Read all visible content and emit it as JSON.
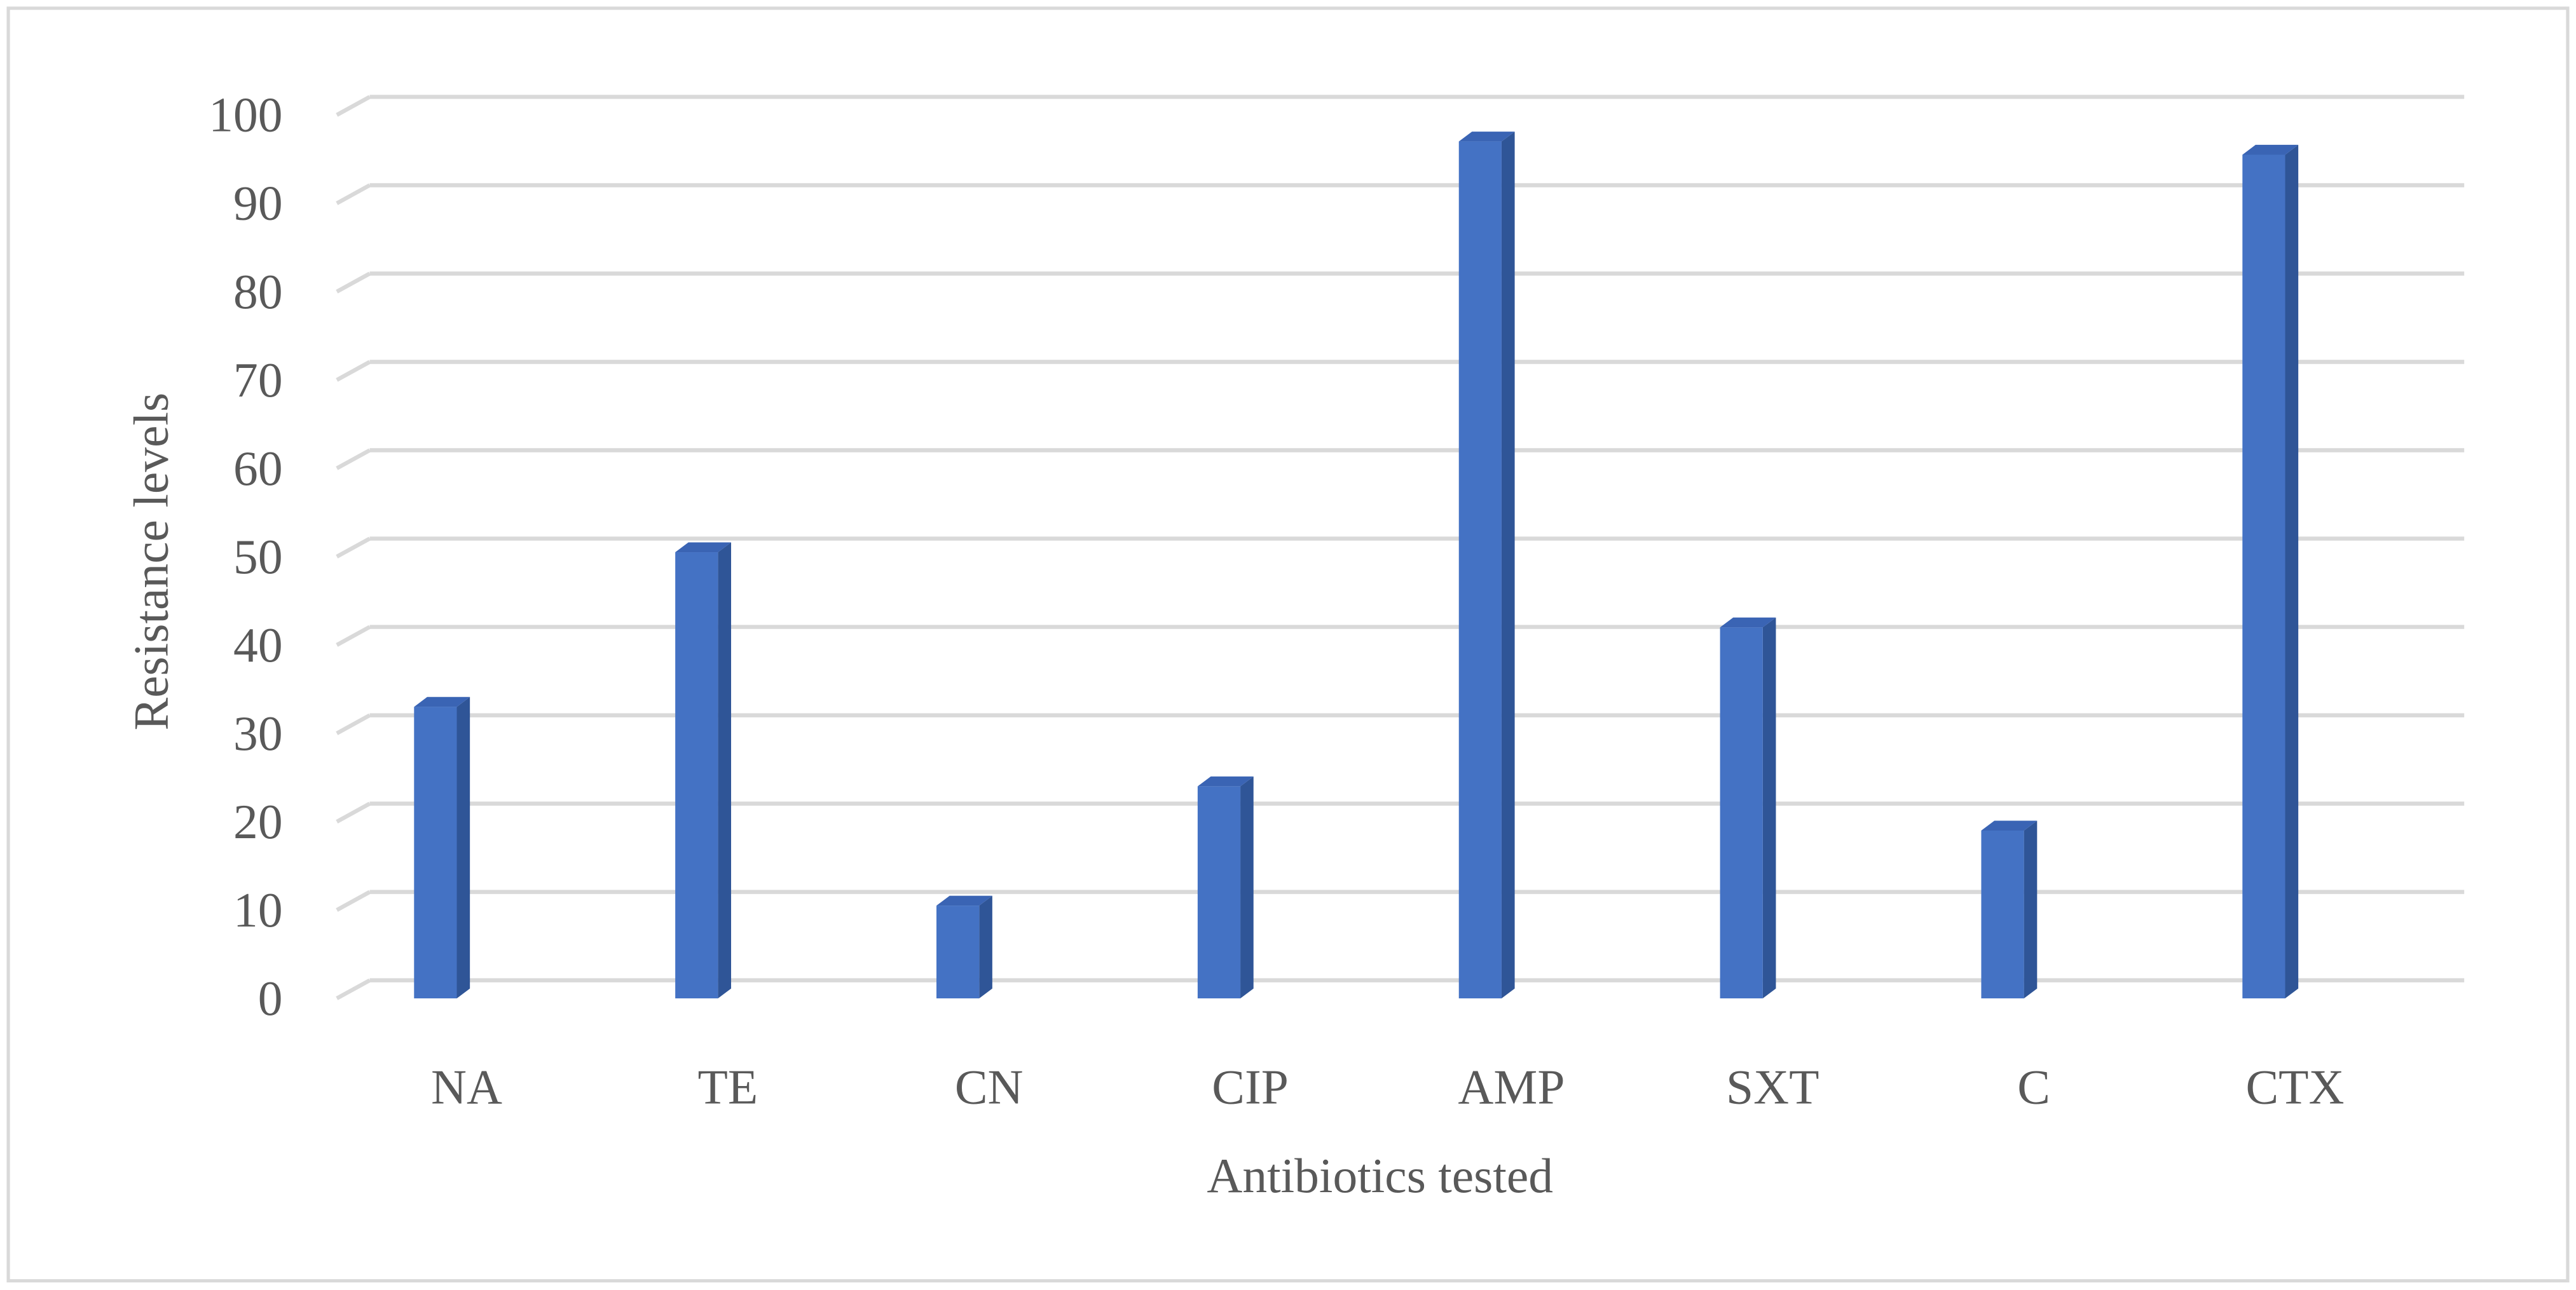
{
  "chart_data": {
    "type": "bar3d",
    "x_label": "Antibiotics tested",
    "y_label": "Resistance levels",
    "categories": [
      "NA",
      "TE",
      "CN",
      "CIP",
      "AMP",
      "SXT",
      "C",
      "CTX"
    ],
    "values": [
      33,
      50.5,
      10.5,
      24,
      97,
      42,
      19,
      95.5
    ],
    "color": "#4472c4",
    "ylim": [
      0,
      100
    ],
    "yticks": [
      0,
      10,
      20,
      30,
      40,
      50,
      60,
      70,
      80,
      90,
      100
    ],
    "grid": true
  }
}
